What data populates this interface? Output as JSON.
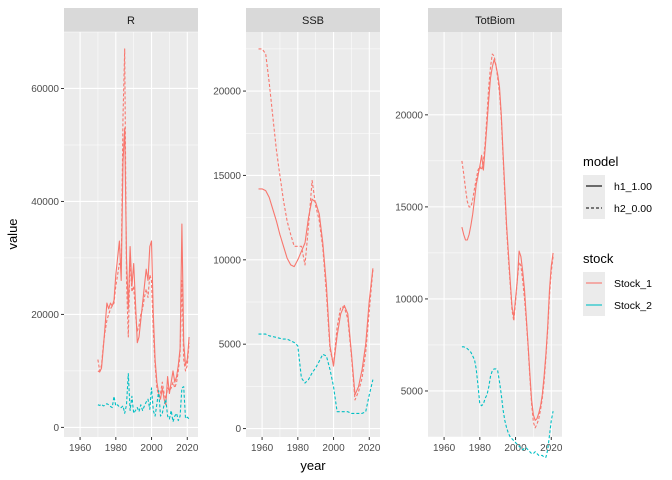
{
  "colors": {
    "Stock_1": "#F8766D",
    "Stock_2": "#00BFC4",
    "panel_bg": "#EBEBEB",
    "strip_bg": "#D9D9D9",
    "grid": "#FFFFFF"
  },
  "axes": {
    "xlabel": "year",
    "ylabel": "value"
  },
  "legend": {
    "model_title": "model",
    "model_items": [
      {
        "label": "h1_1.00",
        "linetype": "solid"
      },
      {
        "label": "h2_0.00",
        "linetype": "dashed"
      }
    ],
    "stock_title": "stock",
    "stock_items": [
      {
        "label": "Stock_1",
        "color": "#F8766D"
      },
      {
        "label": "Stock_2",
        "color": "#00BFC4"
      }
    ]
  },
  "chart_data": {
    "type": "line",
    "xlim": [
      1951,
      2026
    ],
    "xticks": [
      1960,
      1980,
      2000,
      2020
    ],
    "grid": true,
    "legend_position": "right",
    "facets": [
      {
        "name": "R",
        "ylim": [
          -1700,
          70000
        ],
        "yticks": [
          0,
          20000,
          40000,
          60000
        ],
        "ytick_labels": [
          "0",
          "20000",
          "40000",
          "60000"
        ],
        "series": [
          {
            "stock": "Stock_1",
            "model": "h1_1.00",
            "x": [
              1970,
              1971,
              1972,
              1973,
              1974,
              1975,
              1976,
              1977,
              1978,
              1979,
              1980,
              1981,
              1982,
              1983,
              1984,
              1985,
              1986,
              1987,
              1988,
              1989,
              1990,
              1991,
              1992,
              1993,
              1994,
              1995,
              1996,
              1997,
              1998,
              1999,
              2000,
              2001,
              2002,
              2003,
              2004,
              2005,
              2006,
              2007,
              2008,
              2009,
              2010,
              2011,
              2012,
              2013,
              2014,
              2015,
              2016,
              2017,
              2018,
              2019,
              2020,
              2021
            ],
            "y": [
              10000,
              9800,
              10500,
              14000,
              18000,
              22000,
              21000,
              22000,
              21500,
              22500,
              27000,
              30000,
              33000,
              26000,
              47000,
              53000,
              30000,
              21000,
              32000,
              25000,
              29000,
              22000,
              15000,
              16000,
              19000,
              22000,
              25000,
              28000,
              26000,
              32000,
              33000,
              20000,
              12000,
              8000,
              6000,
              5000,
              7000,
              5000,
              4000,
              9000,
              6000,
              8000,
              10000,
              8000,
              9000,
              11000,
              14000,
              36000,
              15000,
              11000,
              12000,
              16000
            ]
          },
          {
            "stock": "Stock_1",
            "model": "h2_0.00",
            "x": [
              1970,
              1971,
              1972,
              1973,
              1974,
              1975,
              1976,
              1977,
              1978,
              1979,
              1980,
              1981,
              1982,
              1983,
              1984,
              1985,
              1986,
              1987,
              1988,
              1989,
              1990,
              1991,
              1992,
              1993,
              1994,
              1995,
              1996,
              1997,
              1998,
              1999,
              2000,
              2001,
              2002,
              2003,
              2004,
              2005,
              2006,
              2007,
              2008,
              2009,
              2010,
              2011,
              2012,
              2013,
              2014,
              2015,
              2016,
              2017,
              2018,
              2019,
              2020,
              2021
            ],
            "y": [
              12000,
              10000,
              11000,
              14500,
              17000,
              19000,
              20000,
              21000,
              21500,
              22000,
              25000,
              27000,
              29000,
              28000,
              55000,
              67000,
              26000,
              16000,
              30000,
              24000,
              25000,
              20000,
              17000,
              18000,
              20000,
              21000,
              23000,
              24500,
              23000,
              27000,
              26000,
              17000,
              11000,
              7000,
              5500,
              6000,
              8000,
              6000,
              5000,
              7000,
              6500,
              7000,
              8000,
              7000,
              8000,
              10000,
              13000,
              26000,
              12000,
              10000,
              11000,
              15000
            ]
          },
          {
            "stock": "Stock_2",
            "model": "h2_0.00",
            "x": [
              1970,
              1971,
              1972,
              1973,
              1974,
              1975,
              1976,
              1977,
              1978,
              1979,
              1980,
              1981,
              1982,
              1983,
              1984,
              1985,
              1986,
              1987,
              1988,
              1989,
              1990,
              1991,
              1992,
              1993,
              1994,
              1995,
              1996,
              1997,
              1998,
              1999,
              2000,
              2001,
              2002,
              2003,
              2004,
              2005,
              2006,
              2007,
              2008,
              2009,
              2010,
              2011,
              2012,
              2013,
              2014,
              2015,
              2016,
              2017,
              2018,
              2019,
              2020,
              2021
            ],
            "y": [
              4000,
              3900,
              4100,
              3800,
              3900,
              4200,
              4000,
              3700,
              3500,
              5500,
              3800,
              4000,
              3600,
              3500,
              3800,
              2500,
              4000,
              9500,
              3000,
              5500,
              2500,
              3000,
              3500,
              2800,
              4000,
              3000,
              3800,
              4500,
              5000,
              3200,
              7000,
              3000,
              2000,
              4200,
              6500,
              2000,
              2500,
              4000,
              5000,
              2000,
              1500,
              3000,
              1000,
              2000,
              2500,
              1200,
              2000,
              7000,
              7200,
              1600,
              1800,
              1500
            ]
          }
        ]
      },
      {
        "name": "SSB",
        "ylim": [
          -500,
          23500
        ],
        "yticks": [
          0,
          5000,
          10000,
          15000,
          20000
        ],
        "ytick_labels": [
          "0",
          "5000",
          "10000",
          "15000",
          "20000"
        ],
        "series": [
          {
            "stock": "Stock_1",
            "model": "h1_1.00",
            "x": [
              1958,
              1960,
              1962,
              1964,
              1966,
              1968,
              1970,
              1972,
              1974,
              1976,
              1978,
              1980,
              1982,
              1984,
              1986,
              1988,
              1990,
              1992,
              1994,
              1996,
              1998,
              2000,
              2002,
              2004,
              2006,
              2008,
              2010,
              2012,
              2014,
              2016,
              2018,
              2020,
              2022
            ],
            "y": [
              14200,
              14200,
              14100,
              13700,
              13000,
              12300,
              11500,
              10800,
              10100,
              9700,
              9600,
              10000,
              10500,
              11000,
              12500,
              13600,
              13400,
              12700,
              11000,
              8500,
              4900,
              3700,
              5500,
              6800,
              7300,
              6800,
              4500,
              2000,
              2500,
              3500,
              5000,
              7600,
              9500
            ]
          },
          {
            "stock": "Stock_1",
            "model": "h2_0.00",
            "x": [
              1958,
              1960,
              1962,
              1964,
              1966,
              1968,
              1970,
              1972,
              1974,
              1976,
              1978,
              1980,
              1982,
              1984,
              1986,
              1988,
              1990,
              1992,
              1994,
              1996,
              1998,
              2000,
              2002,
              2004,
              2006,
              2008,
              2010,
              2012,
              2014,
              2016,
              2018,
              2020,
              2022
            ],
            "y": [
              22500,
              22500,
              22200,
              20500,
              18500,
              16500,
              15000,
              13500,
              12300,
              11500,
              10800,
              10800,
              10800,
              9700,
              12000,
              14700,
              13200,
              12300,
              10700,
              8000,
              4700,
              3800,
              6000,
              7200,
              7200,
              6500,
              4300,
              1700,
              2200,
              3000,
              4500,
              7000,
              9400
            ]
          },
          {
            "stock": "Stock_2",
            "model": "h2_0.00",
            "x": [
              1958,
              1960,
              1962,
              1964,
              1966,
              1968,
              1970,
              1972,
              1974,
              1976,
              1978,
              1980,
              1982,
              1984,
              1986,
              1988,
              1990,
              1992,
              1994,
              1996,
              1998,
              2000,
              2002,
              2004,
              2006,
              2008,
              2010,
              2012,
              2014,
              2016,
              2018,
              2020,
              2022
            ],
            "y": [
              5600,
              5600,
              5600,
              5500,
              5450,
              5400,
              5350,
              5300,
              5300,
              5200,
              5100,
              4900,
              3000,
              2700,
              2900,
              3300,
              3600,
              4000,
              4400,
              4300,
              3500,
              2500,
              1000,
              1000,
              1000,
              1000,
              900,
              900,
              900,
              900,
              1000,
              2000,
              2900
            ]
          }
        ]
      },
      {
        "name": "TotBiom",
        "ylim": [
          2500,
          24500
        ],
        "yticks": [
          5000,
          10000,
          15000,
          20000
        ],
        "ytick_labels": [
          "5000",
          "10000",
          "15000",
          "20000"
        ],
        "series": [
          {
            "stock": "Stock_1",
            "model": "h1_1.00",
            "x": [
              1970,
              1971,
              1972,
              1973,
              1974,
              1975,
              1976,
              1977,
              1978,
              1979,
              1980,
              1981,
              1982,
              1983,
              1984,
              1985,
              1986,
              1987,
              1988,
              1989,
              1990,
              1991,
              1992,
              1993,
              1994,
              1995,
              1996,
              1997,
              1998,
              1999,
              2000,
              2001,
              2002,
              2003,
              2004,
              2005,
              2006,
              2007,
              2008,
              2009,
              2010,
              2011,
              2012,
              2013,
              2014,
              2015,
              2016,
              2017,
              2018,
              2019,
              2020,
              2021
            ],
            "y": [
              13900,
              13500,
              13200,
              13200,
              13500,
              14000,
              14600,
              15400,
              16200,
              16700,
              17200,
              17800,
              17000,
              18200,
              19500,
              20800,
              22000,
              22600,
              23000,
              22700,
              22200,
              21500,
              20000,
              18000,
              16000,
              14000,
              12500,
              11000,
              9600,
              9000,
              10000,
              11000,
              12600,
              12300,
              11500,
              10500,
              9000,
              7500,
              6000,
              4500,
              3700,
              3400,
              3500,
              3800,
              4200,
              4800,
              5800,
              7000,
              8500,
              10500,
              11800,
              12500
            ]
          },
          {
            "stock": "Stock_1",
            "model": "h2_0.00",
            "x": [
              1970,
              1971,
              1972,
              1973,
              1974,
              1975,
              1976,
              1977,
              1978,
              1979,
              1980,
              1981,
              1982,
              1983,
              1984,
              1985,
              1986,
              1987,
              1988,
              1989,
              1990,
              1991,
              1992,
              1993,
              1994,
              1995,
              1996,
              1997,
              1998,
              1999,
              2000,
              2001,
              2002,
              2003,
              2004,
              2005,
              2006,
              2007,
              2008,
              2009,
              2010,
              2011,
              2012,
              2013,
              2014,
              2015,
              2016,
              2017,
              2018,
              2019,
              2020,
              2021
            ],
            "y": [
              17500,
              16800,
              16000,
              15300,
              15000,
              15000,
              15400,
              16000,
              16500,
              17000,
              17200,
              17000,
              17500,
              18500,
              20000,
              21500,
              22600,
              23300,
              23200,
              22700,
              22000,
              21200,
              19800,
              17800,
              15700,
              13800,
              12200,
              10800,
              9400,
              8800,
              9800,
              11000,
              12000,
              11800,
              11000,
              10000,
              8800,
              7400,
              5800,
              4300,
              3300,
              3000,
              3200,
              3500,
              4000,
              4600,
              5500,
              6800,
              8300,
              10200,
              11500,
              12300
            ]
          },
          {
            "stock": "Stock_2",
            "model": "h2_0.00",
            "x": [
              1970,
              1971,
              1972,
              1973,
              1974,
              1975,
              1976,
              1977,
              1978,
              1979,
              1980,
              1981,
              1982,
              1983,
              1984,
              1985,
              1986,
              1987,
              1988,
              1989,
              1990,
              1991,
              1992,
              1993,
              1994,
              1995,
              1996,
              1997,
              1998,
              1999,
              2000,
              2001,
              2002,
              2003,
              2004,
              2005,
              2006,
              2007,
              2008,
              2009,
              2010,
              2011,
              2012,
              2013,
              2014,
              2015,
              2016,
              2017,
              2018,
              2019,
              2020,
              2021
            ],
            "y": [
              7400,
              7400,
              7350,
              7300,
              7200,
              7100,
              6900,
              6700,
              6200,
              5300,
              4300,
              4200,
              4300,
              4600,
              4800,
              5200,
              5800,
              6100,
              6200,
              6200,
              6100,
              5500,
              4800,
              4000,
              3400,
              3000,
              2700,
              2500,
              2400,
              2300,
              2200,
              2100,
              2000,
              1900,
              1800,
              1900,
              1900,
              1800,
              1700,
              1600,
              1600,
              1700,
              1600,
              1500,
              1500,
              1500,
              1400,
              1400,
              1800,
              2600,
              3400,
              3900
            ]
          }
        ]
      }
    ]
  }
}
